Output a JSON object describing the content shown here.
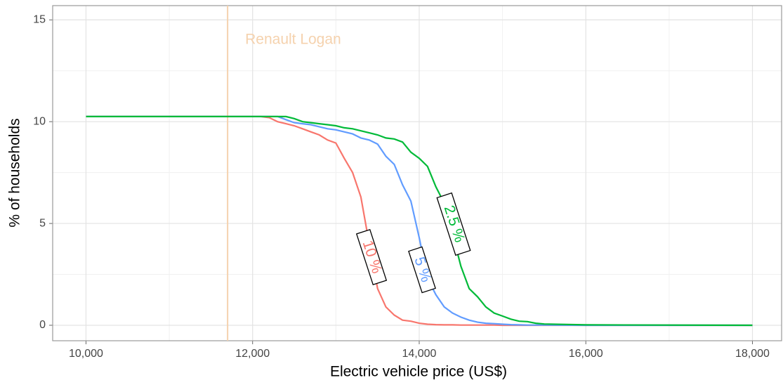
{
  "chart_data": {
    "type": "line",
    "x_label": "Electric vehicle price (US$)",
    "y_label": "% of households",
    "xlim": [
      9600,
      18350
    ],
    "ylim": [
      -0.76,
      15.7
    ],
    "xticks": [
      {
        "value": 10000,
        "label": "10,000"
      },
      {
        "value": 12000,
        "label": "12,000"
      },
      {
        "value": 14000,
        "label": "14,000"
      },
      {
        "value": 16000,
        "label": "16,000"
      },
      {
        "value": 18000,
        "label": "18,000"
      }
    ],
    "yticks": [
      0,
      5,
      10,
      15
    ],
    "xminorticks": [
      11000,
      13000,
      15000,
      17000
    ],
    "yminorticks": [
      2.5,
      7.5,
      12.5
    ],
    "grid": true,
    "reference_line": {
      "x": 11700,
      "label": "Renault Logan",
      "color": "#f5d2ae"
    },
    "x": [
      10000,
      12000,
      12100,
      12200,
      12300,
      12400,
      12500,
      12600,
      12700,
      12800,
      12900,
      13000,
      13100,
      13200,
      13300,
      13400,
      13500,
      13600,
      13700,
      13800,
      13900,
      14000,
      14100,
      14200,
      14300,
      14400,
      14500,
      14600,
      14700,
      14800,
      14900,
      15000,
      15100,
      15200,
      15300,
      15400,
      15500,
      16000,
      18000
    ],
    "series": [
      {
        "name": "10 %",
        "color": "#f8766d",
        "values": [
          10.25,
          10.25,
          10.25,
          10.2,
          10.0,
          9.9,
          9.8,
          9.65,
          9.5,
          9.35,
          9.1,
          8.95,
          8.2,
          7.5,
          6.3,
          4.0,
          1.8,
          0.9,
          0.5,
          0.25,
          0.2,
          0.1,
          0.05,
          0.03,
          0.02,
          0.02,
          0.01,
          0.01,
          0.01,
          0.01,
          0.01,
          0,
          0,
          0,
          0,
          0,
          0,
          0,
          0
        ]
      },
      {
        "name": "5 %",
        "color": "#619cff",
        "values": [
          10.25,
          10.25,
          10.25,
          10.25,
          10.25,
          10.1,
          9.95,
          9.9,
          9.85,
          9.75,
          9.65,
          9.6,
          9.5,
          9.4,
          9.2,
          9.1,
          8.9,
          8.3,
          7.9,
          6.9,
          6.1,
          4.3,
          2.3,
          1.5,
          0.9,
          0.6,
          0.4,
          0.25,
          0.15,
          0.1,
          0.08,
          0.05,
          0.03,
          0.02,
          0.01,
          0.01,
          0.01,
          0,
          0
        ]
      },
      {
        "name": "2.5 %",
        "color": "#00ba38",
        "values": [
          10.25,
          10.25,
          10.25,
          10.25,
          10.25,
          10.25,
          10.15,
          10.0,
          9.95,
          9.9,
          9.85,
          9.8,
          9.7,
          9.65,
          9.55,
          9.45,
          9.35,
          9.2,
          9.15,
          9.0,
          8.5,
          8.2,
          7.8,
          6.8,
          6.0,
          4.5,
          2.9,
          1.8,
          1.4,
          0.9,
          0.6,
          0.45,
          0.3,
          0.2,
          0.18,
          0.1,
          0.06,
          0.02,
          0
        ]
      }
    ]
  }
}
